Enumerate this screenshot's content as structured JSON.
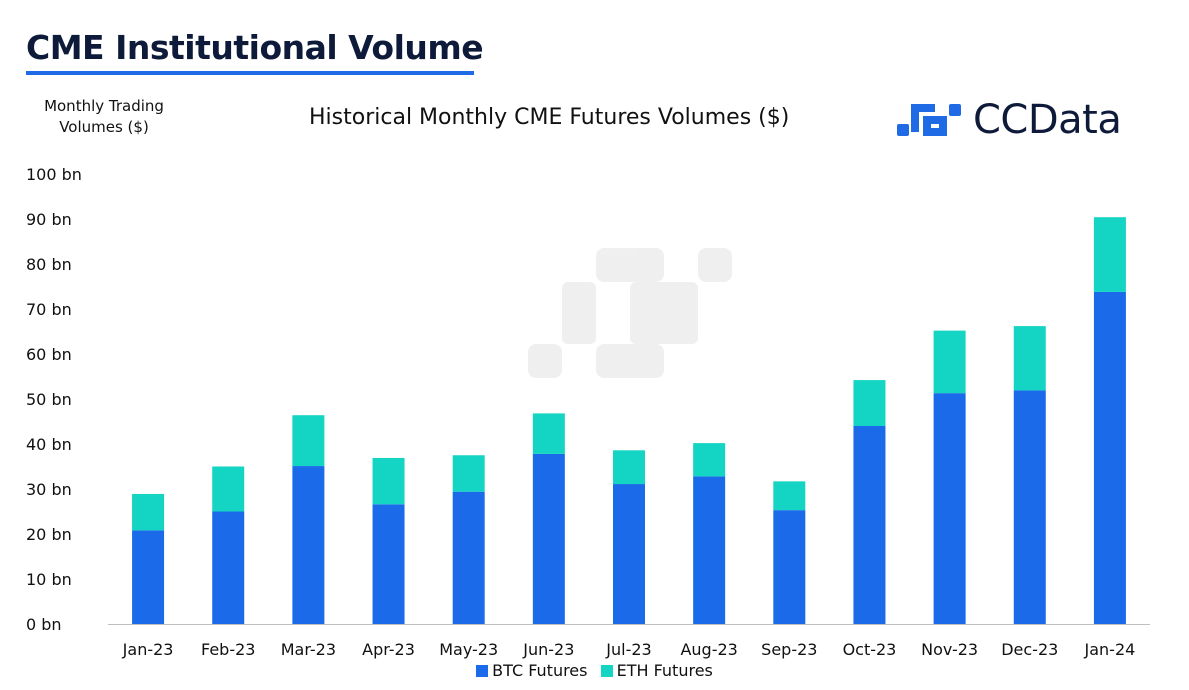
{
  "header": {
    "title": "CME Institutional Volume",
    "brand": "CCData"
  },
  "colors": {
    "btc": "#1b6ae9",
    "eth": "#14d4c4",
    "axis": "#bfbfbf",
    "title": "#0e1a3a",
    "accent": "#1f6be6"
  },
  "chart_data": {
    "type": "bar",
    "stacked": true,
    "title": "Historical Monthly CME Futures Volumes ($)",
    "ylabel": "Monthly Trading Volumes ($)",
    "xlabel": "",
    "ylim": [
      0,
      100
    ],
    "yticks": [
      0,
      10,
      20,
      30,
      40,
      50,
      60,
      70,
      80,
      90,
      100
    ],
    "ytick_labels": [
      "0 bn",
      "10 bn",
      "20 bn",
      "30 bn",
      "40 bn",
      "50 bn",
      "60 bn",
      "70 bn",
      "80 bn",
      "90 bn",
      "100 bn"
    ],
    "grid": false,
    "legend_position": "bottom",
    "categories": [
      "Jan-23",
      "Feb-23",
      "Mar-23",
      "Apr-23",
      "May-23",
      "Jun-23",
      "Jul-23",
      "Aug-23",
      "Sep-23",
      "Oct-23",
      "Nov-23",
      "Dec-23",
      "Jan-24"
    ],
    "series": [
      {
        "name": "BTC Futures",
        "values": [
          20.8,
          25.0,
          35.1,
          26.6,
          29.4,
          37.8,
          31.1,
          32.8,
          25.3,
          44.0,
          51.3,
          51.9,
          73.8
        ]
      },
      {
        "name": "ETH Futures",
        "values": [
          8.1,
          10.0,
          11.3,
          10.3,
          8.1,
          9.0,
          7.5,
          7.4,
          6.4,
          10.2,
          13.9,
          14.3,
          16.6
        ]
      }
    ]
  }
}
